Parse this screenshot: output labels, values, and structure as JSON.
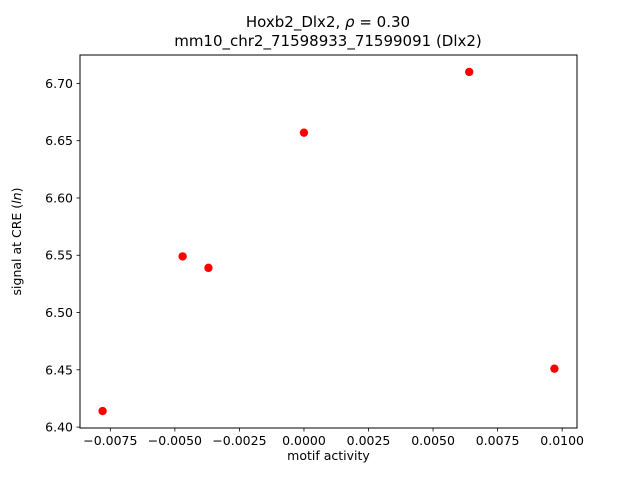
{
  "chart_data": {
    "type": "scatter",
    "title_line1_pre": "Hoxb2_Dlx2, ",
    "title_line1_rho": "ρ",
    "title_line1_post": " = 0.30",
    "title_line2": "mm10_chr2_71598933_71599091 (Dlx2)",
    "xlabel": "motif activity",
    "ylabel_pre": "signal at CRE (",
    "ylabel_italic": "ln",
    "ylabel_post": ")",
    "marker_color": "#ff0000",
    "grid": false,
    "legend": null,
    "xlim": [
      -0.008675,
      0.010575
    ],
    "ylim": [
      6.3992,
      6.7248
    ],
    "x_ticks": {
      "values": [
        -0.0075,
        -0.005,
        -0.0025,
        0.0,
        0.0025,
        0.005,
        0.0075,
        0.01
      ],
      "labels": [
        "−0.0075",
        "−0.0050",
        "−0.0025",
        "0.0000",
        "0.0025",
        "0.0050",
        "0.0075",
        "0.0100"
      ]
    },
    "y_ticks": {
      "values": [
        6.4,
        6.45,
        6.5,
        6.55,
        6.6,
        6.65,
        6.7
      ],
      "labels": [
        "6.40",
        "6.45",
        "6.50",
        "6.55",
        "6.60",
        "6.65",
        "6.70"
      ]
    },
    "points": [
      {
        "x": -0.0078,
        "y": 6.414
      },
      {
        "x": -0.0047,
        "y": 6.549
      },
      {
        "x": -0.0037,
        "y": 6.539
      },
      {
        "x": 0.0,
        "y": 6.657
      },
      {
        "x": 0.0064,
        "y": 6.71
      },
      {
        "x": 0.0097,
        "y": 6.451
      }
    ]
  }
}
